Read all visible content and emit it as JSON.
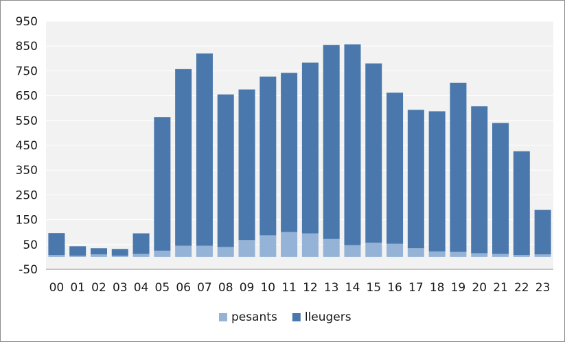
{
  "chart_data": {
    "type": "bar",
    "stacked": true,
    "categories": [
      "00",
      "01",
      "02",
      "03",
      "04",
      "05",
      "06",
      "07",
      "08",
      "09",
      "10",
      "11",
      "12",
      "13",
      "14",
      "15",
      "16",
      "17",
      "18",
      "19",
      "20",
      "21",
      "22",
      "23"
    ],
    "series": [
      {
        "name": "pesants",
        "color": "#95b3d7",
        "values": [
          8,
          5,
          10,
          5,
          12,
          25,
          45,
          45,
          40,
          68,
          87,
          100,
          95,
          72,
          47,
          57,
          53,
          35,
          22,
          20,
          15,
          12,
          8,
          10
        ]
      },
      {
        "name": "lleugers",
        "color": "#4a78ad",
        "values": [
          88,
          38,
          25,
          27,
          83,
          538,
          712,
          775,
          615,
          607,
          640,
          642,
          688,
          782,
          810,
          723,
          609,
          558,
          565,
          682,
          592,
          528,
          418,
          180
        ]
      }
    ],
    "y_ticks": [
      -50,
      50,
      150,
      250,
      350,
      450,
      550,
      650,
      750,
      850,
      950
    ],
    "ylim": [
      -50,
      950
    ],
    "grid": true,
    "legend": "bottom",
    "plot_background": "#f2f2f2"
  }
}
